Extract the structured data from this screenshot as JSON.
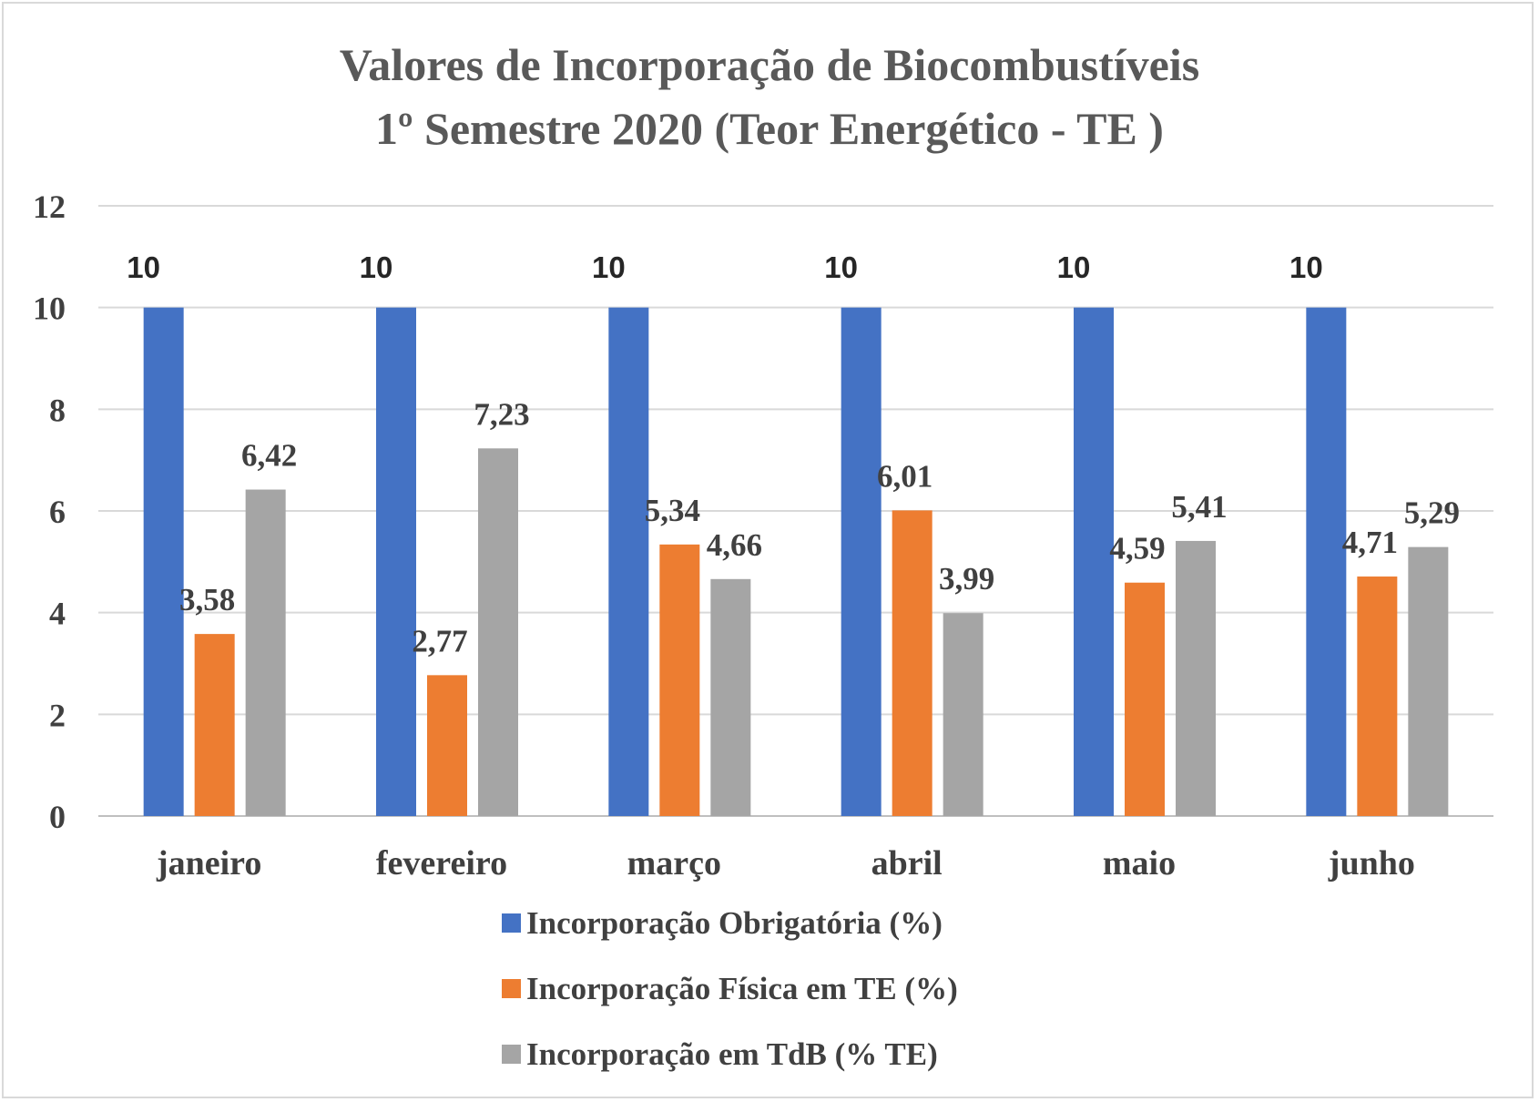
{
  "chart_data": {
    "type": "bar",
    "title": [
      "Valores de Incorporação de Biocombustíveis",
      "1º Semestre 2020 (Teor Energético - TE )"
    ],
    "categories": [
      "janeiro",
      "fevereiro",
      "março",
      "abril",
      "maio",
      "junho"
    ],
    "ylim": [
      0,
      12
    ],
    "yticks": [
      "0",
      "2",
      "4",
      "6",
      "8",
      "10",
      "12"
    ],
    "grid": true,
    "legend_position": "bottom",
    "series": [
      {
        "name": "Incorporação Obrigatória (%)",
        "color": "#4472c4",
        "values": [
          10,
          10,
          10,
          10,
          10,
          10
        ],
        "labels": [
          "10",
          "10",
          "10",
          "10",
          "10",
          "10"
        ]
      },
      {
        "name": "Incorporação Física em TE (%)",
        "color": "#ed7d31",
        "values": [
          3.58,
          2.77,
          5.34,
          6.01,
          4.59,
          4.71
        ],
        "labels": [
          "3,58",
          "2,77",
          "5,34",
          "6,01",
          "4,59",
          "4,71"
        ]
      },
      {
        "name": "Incorporação em TdB (% TE)",
        "color": "#a5a5a5",
        "values": [
          6.42,
          7.23,
          4.66,
          3.99,
          5.41,
          5.29
        ],
        "labels": [
          "6,42",
          "7,23",
          "4,66",
          "3,99",
          "5,41",
          "5,29"
        ]
      }
    ]
  }
}
